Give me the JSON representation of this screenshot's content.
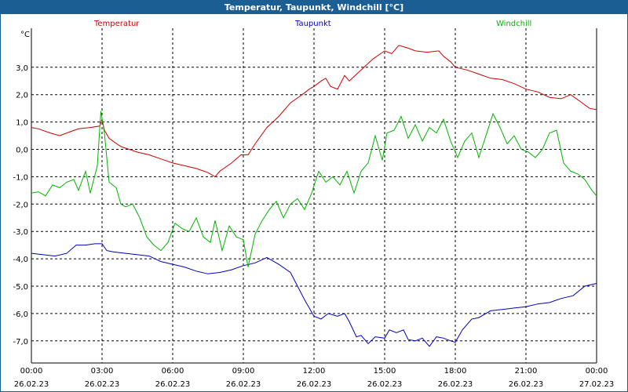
{
  "chart_data": {
    "type": "line",
    "title": "Temperatur, Taupunkt, Windchill [°C]",
    "ylabel": "°C",
    "ylim": [
      -8,
      4.5
    ],
    "yticks": [
      "3,0",
      "2,0",
      "1,0",
      "0,0",
      "-1,0",
      "-2,0",
      "-3,0",
      "-4,0",
      "-5,0",
      "-6,0",
      "-7,0"
    ],
    "ytick_values": [
      3,
      2,
      1,
      0,
      -1,
      -2,
      -3,
      -4,
      -5,
      -6,
      -7
    ],
    "xticks": [
      {
        "hours": 0,
        "time": "00:00",
        "date": "26.02.23"
      },
      {
        "hours": 3,
        "time": "03:00",
        "date": "26.02.23"
      },
      {
        "hours": 6,
        "time": "06:00",
        "date": "26.02.23"
      },
      {
        "hours": 9,
        "time": "09:00",
        "date": "26.02.23"
      },
      {
        "hours": 12,
        "time": "12:00",
        "date": "26.02.23"
      },
      {
        "hours": 15,
        "time": "15:00",
        "date": "26.02.23"
      },
      {
        "hours": 18,
        "time": "18:00",
        "date": "26.02.23"
      },
      {
        "hours": 21,
        "time": "21:00",
        "date": "26.02.23"
      },
      {
        "hours": 24,
        "time": "00:00",
        "date": "27.02.23"
      }
    ],
    "xlim_hours": [
      0,
      24
    ],
    "grid": true,
    "series": [
      {
        "name": "Temperatur",
        "color": "#cc0000",
        "points": [
          [
            0,
            0.8
          ],
          [
            0.3,
            0.75
          ],
          [
            0.8,
            0.6
          ],
          [
            1.2,
            0.5
          ],
          [
            1.5,
            0.6
          ],
          [
            2,
            0.75
          ],
          [
            2.5,
            0.8
          ],
          [
            2.9,
            0.85
          ],
          [
            3.0,
            1.1
          ],
          [
            3.1,
            0.7
          ],
          [
            3.3,
            0.4
          ],
          [
            3.8,
            0.1
          ],
          [
            4.5,
            -0.1
          ],
          [
            5.0,
            -0.2
          ],
          [
            5.5,
            -0.35
          ],
          [
            6.0,
            -0.5
          ],
          [
            6.5,
            -0.6
          ],
          [
            7.0,
            -0.7
          ],
          [
            7.5,
            -0.85
          ],
          [
            7.8,
            -1.0
          ],
          [
            8.0,
            -0.8
          ],
          [
            8.5,
            -0.5
          ],
          [
            8.9,
            -0.2
          ],
          [
            9.2,
            -0.2
          ],
          [
            9.5,
            0.2
          ],
          [
            10.0,
            0.8
          ],
          [
            10.5,
            1.2
          ],
          [
            11.0,
            1.7
          ],
          [
            11.5,
            2.0
          ],
          [
            11.8,
            2.2
          ],
          [
            12.0,
            2.3
          ],
          [
            12.3,
            2.5
          ],
          [
            12.5,
            2.6
          ],
          [
            12.7,
            2.3
          ],
          [
            13.0,
            2.2
          ],
          [
            13.3,
            2.7
          ],
          [
            13.5,
            2.5
          ],
          [
            14.0,
            2.9
          ],
          [
            14.5,
            3.3
          ],
          [
            15.0,
            3.6
          ],
          [
            15.3,
            3.5
          ],
          [
            15.6,
            3.8
          ],
          [
            16.0,
            3.7
          ],
          [
            16.3,
            3.6
          ],
          [
            16.8,
            3.55
          ],
          [
            17.3,
            3.6
          ],
          [
            17.5,
            3.4
          ],
          [
            17.8,
            3.2
          ],
          [
            18.0,
            3.0
          ],
          [
            18.5,
            2.9
          ],
          [
            19.0,
            2.75
          ],
          [
            19.5,
            2.6
          ],
          [
            20.0,
            2.55
          ],
          [
            20.5,
            2.4
          ],
          [
            21.0,
            2.2
          ],
          [
            21.5,
            2.1
          ],
          [
            22.0,
            1.9
          ],
          [
            22.5,
            1.85
          ],
          [
            22.9,
            2.0
          ],
          [
            23.3,
            1.75
          ],
          [
            23.7,
            1.5
          ],
          [
            24.0,
            1.45
          ]
        ]
      },
      {
        "name": "Taupunkt",
        "color": "#0000c0",
        "points": [
          [
            0,
            -3.8
          ],
          [
            0.5,
            -3.85
          ],
          [
            1.0,
            -3.9
          ],
          [
            1.5,
            -3.8
          ],
          [
            1.9,
            -3.5
          ],
          [
            2.3,
            -3.5
          ],
          [
            2.7,
            -3.45
          ],
          [
            3.0,
            -3.45
          ],
          [
            3.2,
            -3.7
          ],
          [
            3.5,
            -3.75
          ],
          [
            4.0,
            -3.8
          ],
          [
            4.5,
            -3.85
          ],
          [
            5.0,
            -3.9
          ],
          [
            5.5,
            -4.1
          ],
          [
            6.0,
            -4.2
          ],
          [
            6.5,
            -4.3
          ],
          [
            7.0,
            -4.45
          ],
          [
            7.5,
            -4.55
          ],
          [
            8.0,
            -4.5
          ],
          [
            8.5,
            -4.4
          ],
          [
            9.0,
            -4.25
          ],
          [
            9.5,
            -4.15
          ],
          [
            10.0,
            -3.95
          ],
          [
            10.5,
            -4.2
          ],
          [
            11.0,
            -4.5
          ],
          [
            11.3,
            -5.0
          ],
          [
            11.6,
            -5.5
          ],
          [
            12.0,
            -6.1
          ],
          [
            12.3,
            -6.2
          ],
          [
            12.6,
            -6.0
          ],
          [
            13.0,
            -6.1
          ],
          [
            13.3,
            -6.0
          ],
          [
            13.5,
            -6.3
          ],
          [
            13.8,
            -6.85
          ],
          [
            14.0,
            -6.8
          ],
          [
            14.3,
            -7.1
          ],
          [
            14.6,
            -6.85
          ],
          [
            15.0,
            -6.9
          ],
          [
            15.2,
            -6.6
          ],
          [
            15.5,
            -6.7
          ],
          [
            15.8,
            -6.6
          ],
          [
            16.0,
            -6.95
          ],
          [
            16.3,
            -7.0
          ],
          [
            16.6,
            -6.9
          ],
          [
            16.9,
            -7.2
          ],
          [
            17.2,
            -6.85
          ],
          [
            17.5,
            -6.9
          ],
          [
            17.8,
            -7.0
          ],
          [
            18.0,
            -7.05
          ],
          [
            18.3,
            -6.6
          ],
          [
            18.7,
            -6.2
          ],
          [
            19.0,
            -6.15
          ],
          [
            19.5,
            -5.9
          ],
          [
            20.0,
            -5.85
          ],
          [
            20.5,
            -5.8
          ],
          [
            21.0,
            -5.75
          ],
          [
            21.5,
            -5.65
          ],
          [
            22.0,
            -5.6
          ],
          [
            22.5,
            -5.45
          ],
          [
            23.0,
            -5.35
          ],
          [
            23.5,
            -5.0
          ],
          [
            24.0,
            -4.9
          ]
        ]
      },
      {
        "name": "Windchill",
        "color": "#00b400",
        "points": [
          [
            0,
            -1.6
          ],
          [
            0.3,
            -1.55
          ],
          [
            0.6,
            -1.7
          ],
          [
            0.9,
            -1.3
          ],
          [
            1.2,
            -1.4
          ],
          [
            1.5,
            -1.2
          ],
          [
            1.8,
            -1.1
          ],
          [
            2.0,
            -1.5
          ],
          [
            2.3,
            -0.8
          ],
          [
            2.5,
            -1.6
          ],
          [
            2.8,
            -0.6
          ],
          [
            2.95,
            1.4
          ],
          [
            3.1,
            0.6
          ],
          [
            3.3,
            -1.2
          ],
          [
            3.6,
            -1.4
          ],
          [
            3.8,
            -2.0
          ],
          [
            4.0,
            -2.1
          ],
          [
            4.3,
            -2.0
          ],
          [
            4.6,
            -2.5
          ],
          [
            4.9,
            -3.2
          ],
          [
            5.2,
            -3.5
          ],
          [
            5.5,
            -3.7
          ],
          [
            5.8,
            -3.4
          ],
          [
            6.1,
            -2.7
          ],
          [
            6.4,
            -2.9
          ],
          [
            6.7,
            -3.0
          ],
          [
            7.0,
            -2.5
          ],
          [
            7.3,
            -3.2
          ],
          [
            7.6,
            -3.4
          ],
          [
            7.8,
            -2.6
          ],
          [
            8.1,
            -3.7
          ],
          [
            8.4,
            -2.8
          ],
          [
            8.7,
            -3.2
          ],
          [
            9.0,
            -3.3
          ],
          [
            9.2,
            -4.3
          ],
          [
            9.5,
            -3.1
          ],
          [
            9.8,
            -2.6
          ],
          [
            10.1,
            -2.2
          ],
          [
            10.4,
            -1.9
          ],
          [
            10.7,
            -2.5
          ],
          [
            11.0,
            -2.0
          ],
          [
            11.3,
            -1.8
          ],
          [
            11.6,
            -2.2
          ],
          [
            11.9,
            -1.6
          ],
          [
            12.2,
            -0.8
          ],
          [
            12.5,
            -1.2
          ],
          [
            12.8,
            -1.0
          ],
          [
            13.1,
            -1.3
          ],
          [
            13.4,
            -0.8
          ],
          [
            13.7,
            -1.6
          ],
          [
            14.0,
            -0.8
          ],
          [
            14.3,
            -0.5
          ],
          [
            14.6,
            0.5
          ],
          [
            14.9,
            -0.4
          ],
          [
            15.1,
            0.6
          ],
          [
            15.4,
            0.7
          ],
          [
            15.7,
            1.2
          ],
          [
            16.0,
            0.4
          ],
          [
            16.3,
            0.9
          ],
          [
            16.6,
            0.3
          ],
          [
            16.9,
            0.8
          ],
          [
            17.2,
            0.6
          ],
          [
            17.5,
            1.1
          ],
          [
            17.8,
            0.3
          ],
          [
            18.1,
            -0.3
          ],
          [
            18.4,
            0.3
          ],
          [
            18.7,
            0.6
          ],
          [
            19.0,
            -0.3
          ],
          [
            19.3,
            0.5
          ],
          [
            19.6,
            1.3
          ],
          [
            19.9,
            0.8
          ],
          [
            20.2,
            0.2
          ],
          [
            20.5,
            0.5
          ],
          [
            20.8,
            0.0
          ],
          [
            21.1,
            -0.1
          ],
          [
            21.4,
            -0.3
          ],
          [
            21.7,
            0.0
          ],
          [
            22.0,
            0.6
          ],
          [
            22.3,
            0.7
          ],
          [
            22.6,
            -0.5
          ],
          [
            22.9,
            -0.8
          ],
          [
            23.2,
            -0.9
          ],
          [
            23.5,
            -1.1
          ],
          [
            23.8,
            -1.5
          ],
          [
            24.0,
            -1.7
          ]
        ]
      }
    ]
  }
}
